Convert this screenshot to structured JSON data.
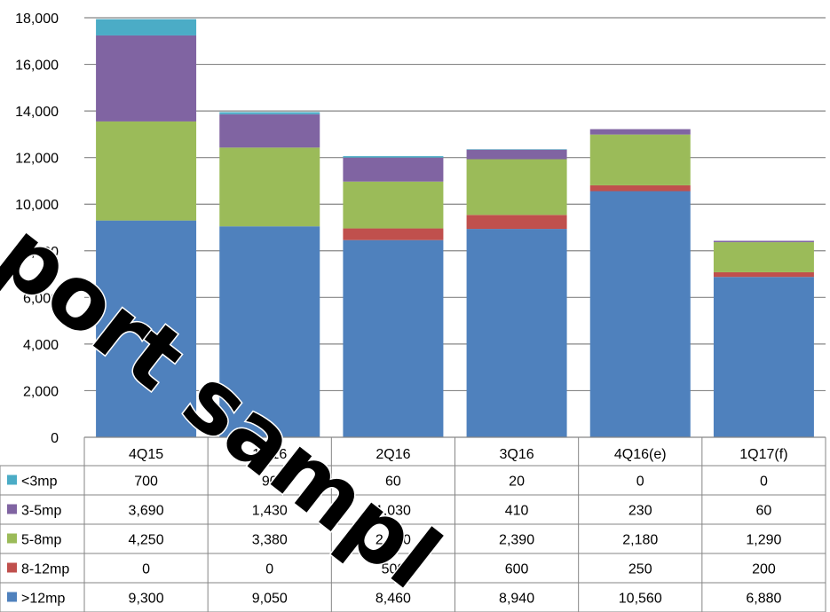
{
  "chart_data": {
    "type": "bar",
    "stacked": true,
    "categories": [
      "4Q15",
      "1Q16",
      "2Q16",
      "3Q16",
      "4Q16(e)",
      "1Q17(f)"
    ],
    "series": [
      {
        "name": ">12mp",
        "color": "#4F81BD",
        "values": [
          9300,
          9050,
          8460,
          8940,
          10560,
          6880
        ],
        "labels": [
          "9,300",
          "9,050",
          "8,460",
          "8,940",
          "10,560",
          "6,880"
        ]
      },
      {
        "name": "8-12mp",
        "color": "#C0504D",
        "values": [
          0,
          0,
          500,
          600,
          250,
          200
        ],
        "labels": [
          "0",
          "0",
          "500",
          "600",
          "250",
          "200"
        ]
      },
      {
        "name": "5-8mp",
        "color": "#9BBB59",
        "values": [
          4250,
          3380,
          2010,
          2390,
          2180,
          1290
        ],
        "labels": [
          "4,250",
          "3,380",
          "2,010",
          "2,390",
          "2,180",
          "1,290"
        ]
      },
      {
        "name": "3-5mp",
        "color": "#8064A2",
        "values": [
          3690,
          1430,
          1030,
          410,
          230,
          60
        ],
        "labels": [
          "3,690",
          "1,430",
          "1,030",
          "410",
          "230",
          "60"
        ]
      },
      {
        "name": "<3mp",
        "color": "#4BACC6",
        "values": [
          700,
          90,
          60,
          20,
          0,
          0
        ],
        "labels": [
          "700",
          "90",
          "60",
          "20",
          "0",
          "0"
        ]
      }
    ],
    "table_row_order": [
      "<3mp",
      "3-5mp",
      "5-8mp",
      "8-12mp",
      ">12mp"
    ],
    "ylim": [
      0,
      18000
    ],
    "yticks": [
      "0",
      "2,000",
      "4,000",
      "6,000",
      "8,000",
      "10,000",
      "12,000",
      "14,000",
      "16,000",
      "18,000"
    ],
    "ytick_values": [
      0,
      2000,
      4000,
      6000,
      8000,
      10000,
      12000,
      14000,
      16000,
      18000
    ],
    "grid": true,
    "legend": "data-table-below",
    "title": "",
    "xlabel": "",
    "ylabel": ""
  },
  "watermark": {
    "text": "port sampl",
    "color": "#000000"
  }
}
